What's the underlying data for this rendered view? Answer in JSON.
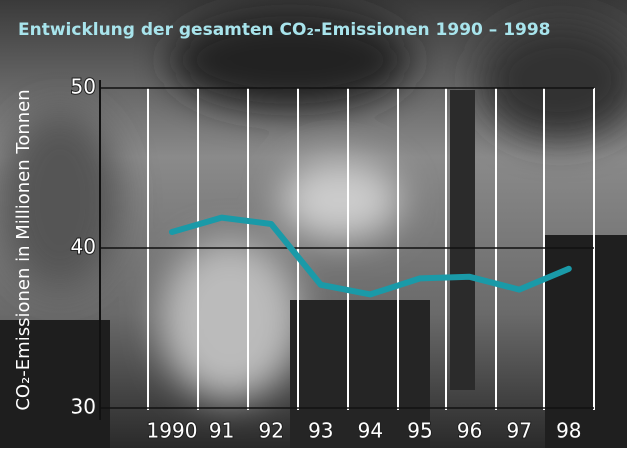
{
  "chart_data": {
    "type": "line",
    "title": "Entwicklung der gesamten CO₂-Emissionen 1990 – 1998",
    "y_label": "CO₂-Emissionen in Millionen Tonnen",
    "categories": [
      "1990",
      "91",
      "92",
      "93",
      "94",
      "95",
      "96",
      "97",
      "98"
    ],
    "values": [
      41.0,
      41.9,
      41.5,
      37.7,
      37.1,
      38.1,
      38.2,
      37.4,
      38.7
    ],
    "color": "#1a9aa8",
    "ylim": [
      30,
      50
    ],
    "yticks": [
      30,
      40,
      50
    ],
    "grid": true
  }
}
